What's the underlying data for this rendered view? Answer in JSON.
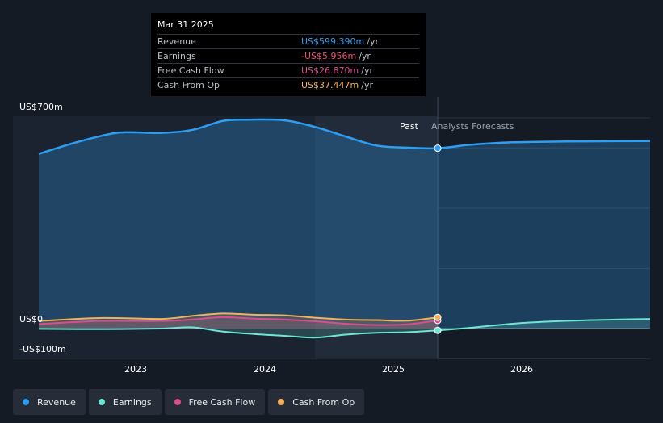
{
  "tooltip": {
    "date": "Mar 31 2025",
    "rows": [
      {
        "label": "Revenue",
        "value": "US$599.390m",
        "unit": "/yr",
        "color": "#2e9ef2"
      },
      {
        "label": "Earnings",
        "value": "-US$5.956m",
        "unit": "/yr",
        "color": "#f0506e"
      },
      {
        "label": "Free Cash Flow",
        "value": "US$26.870m",
        "unit": "/yr",
        "color": "#d94f8c"
      },
      {
        "label": "Cash From Op",
        "value": "US$37.447m",
        "unit": "/yr",
        "color": "#f2b25c"
      }
    ]
  },
  "markers": {
    "past": "Past",
    "forecast": "Analysts Forecasts"
  },
  "legend": [
    {
      "label": "Revenue",
      "color": "#2e9ef2"
    },
    {
      "label": "Earnings",
      "color": "#6ee6d3"
    },
    {
      "label": "Free Cash Flow",
      "color": "#d94f8c"
    },
    {
      "label": "Cash From Op",
      "color": "#f2b25c"
    }
  ],
  "chart_data": {
    "type": "line",
    "y_tick_labels": [
      "US$700m",
      "US$0",
      "-US$100m"
    ],
    "x_tick_labels": [
      "2023",
      "2024",
      "2025",
      "2026"
    ],
    "ylim": [
      -100,
      700
    ],
    "xlim": [
      2022.0,
      2026.98
    ],
    "divider_x": 2025.25,
    "series": [
      {
        "name": "Revenue",
        "color": "#2e9ef2",
        "x": [
          2022.0,
          2022.3,
          2022.6,
          2022.75,
          2023.0,
          2023.25,
          2023.5,
          2023.7,
          2024.0,
          2024.25,
          2024.5,
          2024.75,
          2025.0,
          2025.25,
          2025.5,
          2025.75,
          2026.0,
          2026.5,
          2026.98
        ],
        "y": [
          580,
          618,
          648,
          652,
          650,
          660,
          690,
          694,
          692,
          670,
          638,
          608,
          601,
          599,
          610,
          617,
          620,
          622,
          623
        ]
      },
      {
        "name": "Earnings",
        "color": "#6ee6d3",
        "x": [
          2022.0,
          2022.5,
          2023.0,
          2023.25,
          2023.5,
          2023.75,
          2024.0,
          2024.25,
          2024.5,
          2024.75,
          2025.0,
          2025.25,
          2025.5,
          2025.75,
          2026.0,
          2026.5,
          2026.98
        ],
        "y": [
          -1,
          -2,
          0,
          4,
          -10,
          -18,
          -24,
          -30,
          -20,
          -14,
          -12,
          -6,
          2,
          12,
          20,
          28,
          32
        ]
      },
      {
        "name": "Free Cash Flow",
        "color": "#d94f8c",
        "x": [
          2022.0,
          2022.5,
          2023.0,
          2023.25,
          2023.5,
          2023.75,
          2024.0,
          2024.25,
          2024.5,
          2024.75,
          2025.0,
          2025.25
        ],
        "y": [
          15,
          25,
          25,
          30,
          38,
          33,
          30,
          24,
          16,
          12,
          14,
          27
        ]
      },
      {
        "name": "Cash From Op",
        "color": "#f2b25c",
        "x": [
          2022.0,
          2022.5,
          2023.0,
          2023.25,
          2023.5,
          2023.75,
          2024.0,
          2024.25,
          2024.5,
          2024.75,
          2025.0,
          2025.25
        ],
        "y": [
          25,
          35,
          32,
          42,
          50,
          46,
          44,
          36,
          30,
          28,
          26,
          37
        ]
      }
    ]
  }
}
